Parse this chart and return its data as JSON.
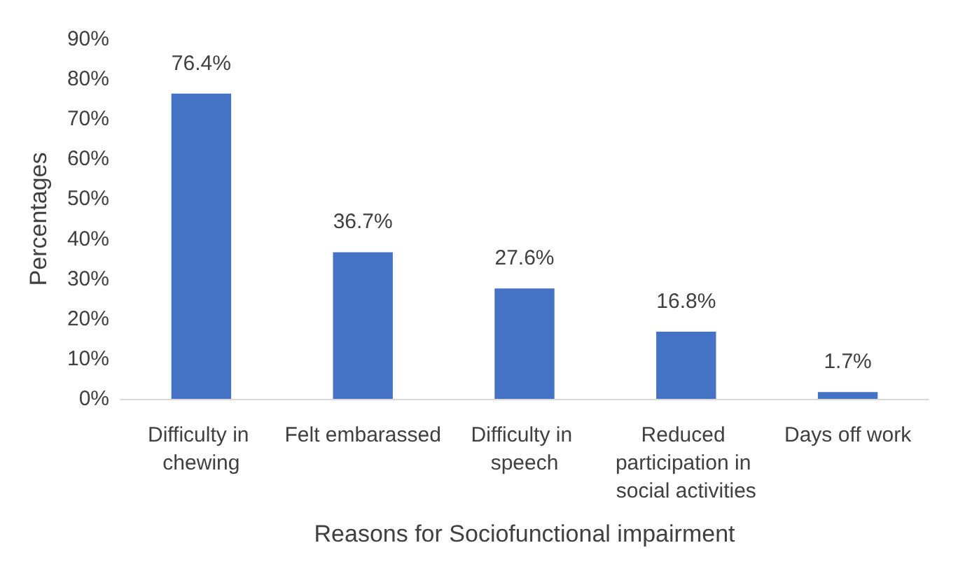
{
  "chart_data": {
    "type": "bar",
    "xlabel": "Reasons for Sociofunctional impairment",
    "ylabel": "Percentages",
    "categories": [
      "Difficulty in chewing",
      "Felt embarassed",
      "Difficulty in speech",
      "Reduced participation in social activities",
      "Days off work"
    ],
    "values": [
      76.4,
      36.7,
      27.6,
      16.8,
      1.7
    ],
    "value_labels": [
      "76.4%",
      "36.7%",
      "27.6%",
      "16.8%",
      "1.7%"
    ],
    "color": "#4472c4",
    "ylim": [
      0,
      90
    ],
    "yticks": [
      {
        "value": 0,
        "label": "0%"
      },
      {
        "value": 10,
        "label": "10%"
      },
      {
        "value": 20,
        "label": "20%"
      },
      {
        "value": 30,
        "label": "30%"
      },
      {
        "value": 40,
        "label": "40%"
      },
      {
        "value": 50,
        "label": "50%"
      },
      {
        "value": 60,
        "label": "60%"
      },
      {
        "value": 70,
        "label": "70%"
      },
      {
        "value": 80,
        "label": "80%"
      },
      {
        "value": 90,
        "label": "90%"
      }
    ],
    "grid": false
  }
}
